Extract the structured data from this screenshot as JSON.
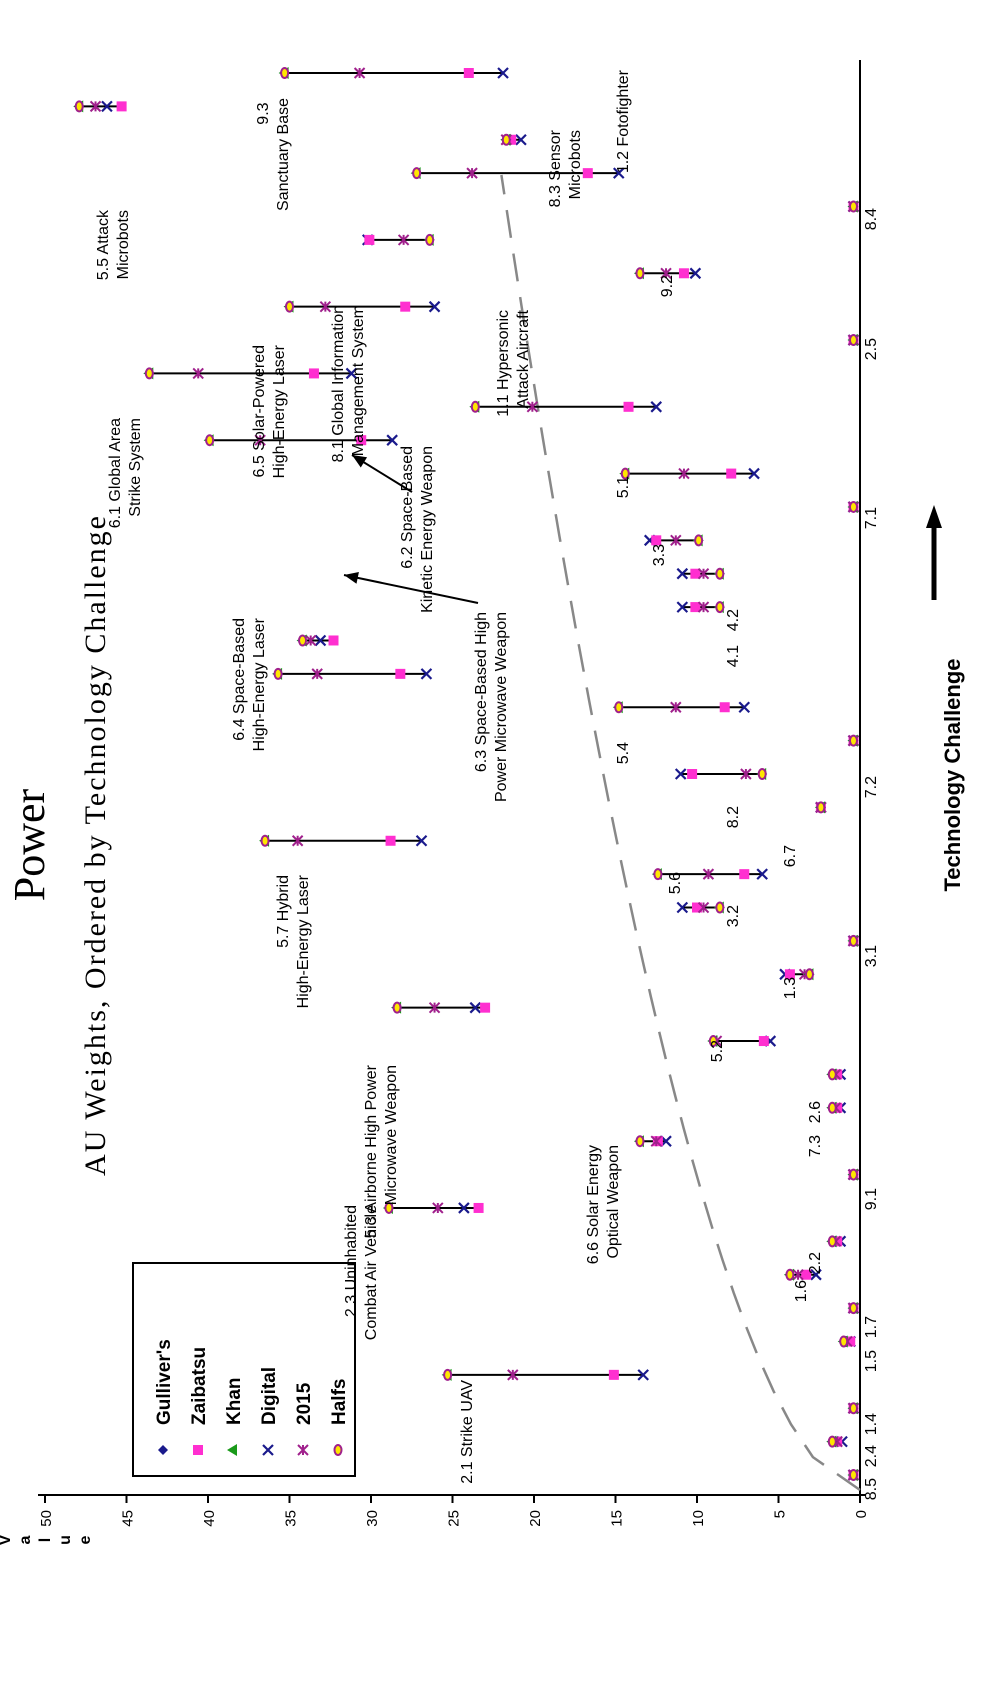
{
  "chart_data": {
    "type": "scatter",
    "title": "Power",
    "subtitle": "AU Weights, Ordered by Technology Challenge",
    "xlabel": "Technology Challenge",
    "ylabel": "Value",
    "ylim": [
      0,
      50
    ],
    "yticks": [
      0,
      5,
      10,
      15,
      20,
      25,
      30,
      35,
      40,
      45,
      50
    ],
    "legend_position": "bottom-left",
    "trend_line": "dashed curve",
    "colors": {
      "Gulliver's": "#1a1a8c",
      "Zaibatsu": "#ff2fd0",
      "Khan": "#1a9a1a",
      "Digital": "#1a1a8c",
      "2015": "#a0208c",
      "Halfs": "#a0208c",
      "connector": "#000000",
      "trend": "#888888"
    },
    "series": [
      {
        "name": "Gulliver's",
        "marker": "diamond"
      },
      {
        "name": "Zaibatsu",
        "marker": "square"
      },
      {
        "name": "Khan",
        "marker": "triangle"
      },
      {
        "name": "Digital",
        "marker": "x"
      },
      {
        "name": "2015",
        "marker": "star"
      },
      {
        "name": "Halfs",
        "marker": "circle"
      }
    ],
    "systems": [
      {
        "id": "8.5",
        "label": "8.5",
        "x": 1,
        "values": {
          "Gulliver's": 0.4,
          "Zaibatsu": 0.4,
          "Khan": 0.4,
          "Digital": 0.4,
          "2015": 0.4,
          "Halfs": 0.4
        }
      },
      {
        "id": "2.4",
        "label": "2.4",
        "x": 2,
        "values": {
          "Gulliver's": 1.7,
          "Zaibatsu": 1.4,
          "Khan": 1.7,
          "Digital": 1.1,
          "2015": 1.4,
          "Halfs": 1.7
        }
      },
      {
        "id": "1.4",
        "label": "1.4",
        "x": 3,
        "values": {
          "Gulliver's": 0.4,
          "Zaibatsu": 0.4,
          "Khan": 0.4,
          "Digital": 0.4,
          "2015": 0.4,
          "Halfs": 0.4
        }
      },
      {
        "id": "2.1",
        "label": "2.1  Strike UAV",
        "x": 4,
        "values": {
          "Gulliver's": 25.3,
          "Zaibatsu": 15.1,
          "Khan": 25.3,
          "Digital": 13.3,
          "2015": 21.3,
          "Halfs": 25.3
        }
      },
      {
        "id": "1.5",
        "label": "1.5",
        "x": 5,
        "values": {
          "Gulliver's": 1.0,
          "Zaibatsu": 0.6,
          "Khan": 1.0,
          "Digital": 0.6,
          "2015": 0.8,
          "Halfs": 1.0
        }
      },
      {
        "id": "1.7",
        "label": "1.7",
        "x": 6,
        "values": {
          "Gulliver's": 0.4,
          "Zaibatsu": 0.4,
          "Khan": 0.4,
          "Digital": 0.4,
          "2015": 0.4,
          "Halfs": 0.4
        }
      },
      {
        "id": "1.6",
        "label": "1.6",
        "x": 7,
        "values": {
          "Gulliver's": 4.3,
          "Zaibatsu": 3.3,
          "Khan": 4.3,
          "Digital": 2.7,
          "2015": 3.8,
          "Halfs": 4.3
        }
      },
      {
        "id": "2.2",
        "label": "2.2",
        "x": 8,
        "values": {
          "Gulliver's": 1.7,
          "Zaibatsu": 1.4,
          "Khan": 1.7,
          "Digital": 1.2,
          "2015": 1.5,
          "Halfs": 1.7
        }
      },
      {
        "id": "2.3",
        "label": "2.3  Uninhabited Combat Air Vehicle",
        "x": 9,
        "values": {
          "Gulliver's": 28.9,
          "Zaibatsu": 23.4,
          "Khan": 28.9,
          "Digital": 24.3,
          "2015": 25.9,
          "Halfs": 28.9
        }
      },
      {
        "id": "9.1",
        "label": "9.1",
        "x": 10,
        "values": {
          "Gulliver's": 0.4,
          "Zaibatsu": 0.4,
          "Khan": 0.4,
          "Digital": 0.4,
          "2015": 0.4,
          "Halfs": 0.4
        }
      },
      {
        "id": "6.6",
        "label": "6.6  Solar Energy Optical Weapon",
        "x": 11,
        "values": {
          "Gulliver's": 13.5,
          "Zaibatsu": 12.4,
          "Khan": 13.5,
          "Digital": 11.9,
          "2015": 12.5,
          "Halfs": 13.5
        }
      },
      {
        "id": "7.3",
        "label": "7.3",
        "x": 12,
        "values": {
          "Gulliver's": 1.7,
          "Zaibatsu": 1.4,
          "Khan": 1.7,
          "Digital": 1.2,
          "2015": 1.5,
          "Halfs": 1.7
        }
      },
      {
        "id": "2.6",
        "label": "2.6",
        "x": 13,
        "values": {
          "Gulliver's": 1.7,
          "Zaibatsu": 1.4,
          "Khan": 1.7,
          "Digital": 1.2,
          "2015": 1.5,
          "Halfs": 1.7
        }
      },
      {
        "id": "5.2",
        "label": "5.2",
        "x": 14,
        "values": {
          "Gulliver's": 9.0,
          "Zaibatsu": 5.9,
          "Khan": 9.0,
          "Digital": 5.5,
          "2015": 8.8,
          "Halfs": 9.0
        }
      },
      {
        "id": "5.3",
        "label": "5.3  Airborne High Power Microwave Weapon",
        "x": 15,
        "values": {
          "Gulliver's": 28.4,
          "Zaibatsu": 23.0,
          "Khan": 28.4,
          "Digital": 23.6,
          "2015": 26.1,
          "Halfs": 28.4
        }
      },
      {
        "id": "1.3",
        "label": "1.3",
        "x": 16,
        "values": {
          "Gulliver's": 3.1,
          "Zaibatsu": 4.3,
          "Khan": 3.1,
          "Digital": 4.6,
          "2015": 3.4,
          "Halfs": 3.1
        }
      },
      {
        "id": "3.1",
        "label": "3.1",
        "x": 17,
        "values": {
          "Gulliver's": 0.4,
          "Zaibatsu": 0.4,
          "Khan": 0.4,
          "Digital": 0.4,
          "2015": 0.4,
          "Halfs": 0.4
        }
      },
      {
        "id": "3.2",
        "label": "3.2",
        "x": 18,
        "values": {
          "Gulliver's": 8.6,
          "Zaibatsu": 10.0,
          "Khan": 8.6,
          "Digital": 10.9,
          "2015": 9.6,
          "Halfs": 8.6
        }
      },
      {
        "id": "5.6",
        "label": "5.6",
        "x": 19,
        "values": {
          "Gulliver's": 12.4,
          "Zaibatsu": 7.1,
          "Khan": 12.4,
          "Digital": 6.0,
          "2015": 9.3,
          "Halfs": 12.4
        }
      },
      {
        "id": "5.7",
        "label": "5.7 Hybrid High-Energy Laser",
        "x": 20,
        "values": {
          "Gulliver's": 36.5,
          "Zaibatsu": 28.8,
          "Khan": 36.5,
          "Digital": 26.9,
          "2015": 34.5,
          "Halfs": 36.5
        }
      },
      {
        "id": "6.7",
        "label": "6.7",
        "x": 21,
        "values": {
          "Gulliver's": 2.4,
          "Zaibatsu": 2.4,
          "Khan": 2.4,
          "Digital": 2.4,
          "2015": 2.4,
          "Halfs": 2.4
        }
      },
      {
        "id": "8.2",
        "label": "8.2",
        "x": 22,
        "values": {
          "Gulliver's": 6.0,
          "Zaibatsu": 10.3,
          "Khan": 6.0,
          "Digital": 11.0,
          "2015": 7.0,
          "Halfs": 6.0
        }
      },
      {
        "id": "7.2",
        "label": "7.2",
        "x": 23,
        "values": {
          "Gulliver's": 0.4,
          "Zaibatsu": 0.4,
          "Khan": 0.4,
          "Digital": 0.4,
          "2015": 0.4,
          "Halfs": 0.4
        }
      },
      {
        "id": "5.4",
        "label": "5.4",
        "x": 24,
        "values": {
          "Gulliver's": 14.8,
          "Zaibatsu": 8.3,
          "Khan": 14.8,
          "Digital": 7.1,
          "2015": 11.3,
          "Halfs": 14.8
        }
      },
      {
        "id": "6.4",
        "label": "6.4  Space-Based High-Energy Laser",
        "x": 25,
        "values": {
          "Gulliver's": 35.7,
          "Zaibatsu": 28.2,
          "Khan": 35.7,
          "Digital": 26.6,
          "2015": 33.3,
          "Halfs": 35.7
        }
      },
      {
        "id": "6.3",
        "label": "6.3  Space-Based High Power Microwave Weapon",
        "x": 26,
        "values": {
          "Gulliver's": 34.2,
          "Zaibatsu": 32.3,
          "Khan": 34.2,
          "Digital": 33.1,
          "2015": 33.7,
          "Halfs": 34.2
        }
      },
      {
        "id": "4.1",
        "label": "4.1",
        "x": 27,
        "values": {
          "Gulliver's": 8.6,
          "Zaibatsu": 10.1,
          "Khan": 8.6,
          "Digital": 10.9,
          "2015": 9.6,
          "Halfs": 8.6
        }
      },
      {
        "id": "4.2",
        "label": "4.2",
        "x": 28,
        "values": {
          "Gulliver's": 8.6,
          "Zaibatsu": 10.1,
          "Khan": 8.6,
          "Digital": 10.9,
          "2015": 9.6,
          "Halfs": 8.6
        }
      },
      {
        "id": "3.3",
        "label": "3.3",
        "x": 29,
        "values": {
          "Gulliver's": 9.9,
          "Zaibatsu": 12.5,
          "Khan": 9.9,
          "Digital": 12.9,
          "2015": 11.3,
          "Halfs": 9.9
        }
      },
      {
        "id": "7.1",
        "label": "7.1",
        "x": 30,
        "values": {
          "Gulliver's": 0.4,
          "Zaibatsu": 0.4,
          "Khan": 0.4,
          "Digital": 0.4,
          "2015": 0.4,
          "Halfs": 0.4
        }
      },
      {
        "id": "5.1",
        "label": "5.1",
        "x": 31,
        "values": {
          "Gulliver's": 14.4,
          "Zaibatsu": 7.9,
          "Khan": 14.4,
          "Digital": 6.5,
          "2015": 10.8,
          "Halfs": 14.4
        }
      },
      {
        "id": "6.2",
        "label": "6.2  Space-Based Kinetic Energy Weapon",
        "x": 32,
        "values": {
          "Gulliver's": 39.9,
          "Zaibatsu": 30.6,
          "Khan": 39.9,
          "Digital": 28.7,
          "2015": 36.8,
          "Halfs": 39.9
        }
      },
      {
        "id": "1.1",
        "label": "1.1  Hypersonic Attack Aircraft",
        "x": 33,
        "values": {
          "Gulliver's": 23.6,
          "Zaibatsu": 14.2,
          "Khan": 23.6,
          "Digital": 12.5,
          "2015": 20.1,
          "Halfs": 23.6
        }
      },
      {
        "id": "6.1",
        "label": "6.1  Global Area Strike System",
        "x": 34,
        "values": {
          "Gulliver's": 43.6,
          "Zaibatsu": 33.5,
          "Khan": 43.6,
          "Digital": 31.2,
          "2015": 40.6,
          "Halfs": 43.6
        }
      },
      {
        "id": "2.5",
        "label": "2.5",
        "x": 35,
        "values": {
          "Gulliver's": 0.4,
          "Zaibatsu": 0.4,
          "Khan": 0.4,
          "Digital": 0.4,
          "2015": 0.4,
          "Halfs": 0.4
        }
      },
      {
        "id": "6.5",
        "label": "6.5  Solar-Powered High-Energy Laser",
        "x": 36,
        "values": {
          "Gulliver's": 35.0,
          "Zaibatsu": 27.9,
          "Khan": 35.0,
          "Digital": 26.1,
          "2015": 32.8,
          "Halfs": 35.0
        }
      },
      {
        "id": "9.2",
        "label": "9.2",
        "x": 37,
        "values": {
          "Gulliver's": 13.5,
          "Zaibatsu": 10.8,
          "Khan": 13.5,
          "Digital": 10.1,
          "2015": 11.9,
          "Halfs": 13.5
        }
      },
      {
        "id": "8.1",
        "label": "8.1  Global Information Management System",
        "x": 38,
        "values": {
          "Gulliver's": 26.4,
          "Zaibatsu": 30.1,
          "Khan": 26.4,
          "Digital": 30.2,
          "2015": 28.0,
          "Halfs": 26.4
        }
      },
      {
        "id": "8.4",
        "label": "8.4",
        "x": 39,
        "values": {
          "Gulliver's": 0.4,
          "Zaibatsu": 0.4,
          "Khan": 0.4,
          "Digital": 0.4,
          "2015": 0.4,
          "Halfs": 0.4
        }
      },
      {
        "id": "1.2",
        "label": "1.2  Fotofighter",
        "x": 40,
        "values": {
          "Gulliver's": 27.2,
          "Zaibatsu": 16.7,
          "Khan": 27.2,
          "Digital": 14.8,
          "2015": 23.8,
          "Halfs": 27.2
        }
      },
      {
        "id": "8.3",
        "label": "8.3  Sensor Microbots",
        "x": 41,
        "values": {
          "Gulliver's": 21.7,
          "Zaibatsu": 21.4,
          "Khan": 21.7,
          "Digital": 20.8,
          "2015": 21.7,
          "Halfs": 21.7
        }
      },
      {
        "id": "5.5",
        "label": "5.5  Attack Microbots",
        "x": 42,
        "values": {
          "Gulliver's": 47.9,
          "Zaibatsu": 45.3,
          "Khan": 47.9,
          "Digital": 46.2,
          "2015": 46.9,
          "Halfs": 47.9
        }
      },
      {
        "id": "9.3",
        "label": "9.3  Sanctuary Base",
        "x": 43,
        "values": {
          "Gulliver's": 35.3,
          "Zaibatsu": 24.0,
          "Khan": 35.3,
          "Digital": 21.9,
          "2015": 30.7,
          "Halfs": 35.3
        }
      }
    ]
  }
}
